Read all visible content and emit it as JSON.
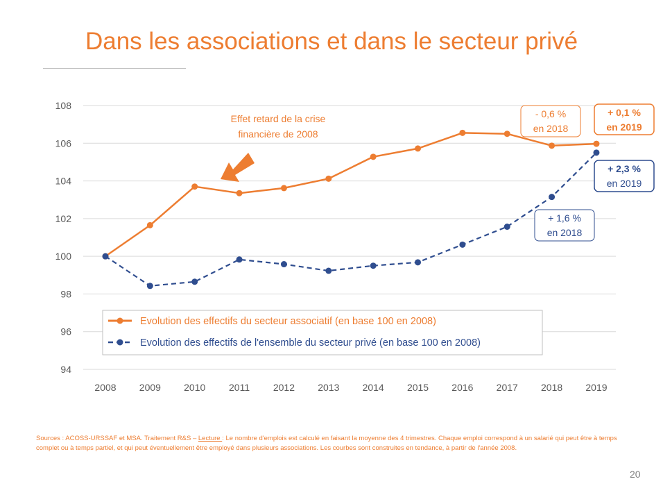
{
  "slide": {
    "title": "Dans les associations et dans le secteur privé",
    "page_number": "20"
  },
  "sources": {
    "prefix": "Sources : ACOSS-URSSAF et MSA. Traitement R&S – ",
    "lecture_label": "Lecture ",
    "text": ": Le nombre d'emplois est calculé en faisant la moyenne des 4 trimestres. Chaque emploi correspond à un salarié qui peut être à temps complet ou à temps partiel, et qui peut éventuellement être employé dans plusieurs associations. Les courbes sont construites en tendance, à partir de l'année 2008."
  },
  "colors": {
    "orange": "#ED7D31",
    "navy": "#2F4D8F",
    "grid": "#d9d9d9",
    "axis_text": "#595959"
  },
  "chart_data": {
    "type": "line",
    "x": [
      "2008",
      "2009",
      "2010",
      "2011",
      "2012",
      "2013",
      "2014",
      "2015",
      "2016",
      "2017",
      "2018",
      "2019"
    ],
    "ylim": [
      94,
      108
    ],
    "yticks": [
      94,
      96,
      98,
      100,
      102,
      104,
      106,
      108
    ],
    "grid": true,
    "legend_position": "bottom-left",
    "series": [
      {
        "name": "Evolution des effectifs du secteur associatif (en base 100 en 2008)",
        "color": "#ED7D31",
        "dash": "solid",
        "values": [
          100,
          101.65,
          103.7,
          103.35,
          103.62,
          104.12,
          105.28,
          105.72,
          106.55,
          106.5,
          105.87,
          105.97
        ]
      },
      {
        "name": "Evolution des effectifs de l'ensemble du secteur privé (en base 100 en 2008)",
        "color": "#2F4D8F",
        "dash": "dashed",
        "values": [
          100,
          98.43,
          98.65,
          99.83,
          99.58,
          99.23,
          99.5,
          99.68,
          100.62,
          101.57,
          103.15,
          105.5
        ]
      }
    ],
    "annotations": {
      "crisis_line1": "Effet retard de la crise",
      "crisis_line2": "financière de 2008",
      "assoc_2018_line1": "- 0,6 %",
      "assoc_2018_line2": "en 2018",
      "assoc_2019_line1": "+ 0,1 %",
      "assoc_2019_line2": "en 2019",
      "priv_2018_line1": "+ 1,6 %",
      "priv_2018_line2": "en 2018",
      "priv_2019_line1": "+ 2,3 %",
      "priv_2019_line2": "en 2019"
    }
  }
}
